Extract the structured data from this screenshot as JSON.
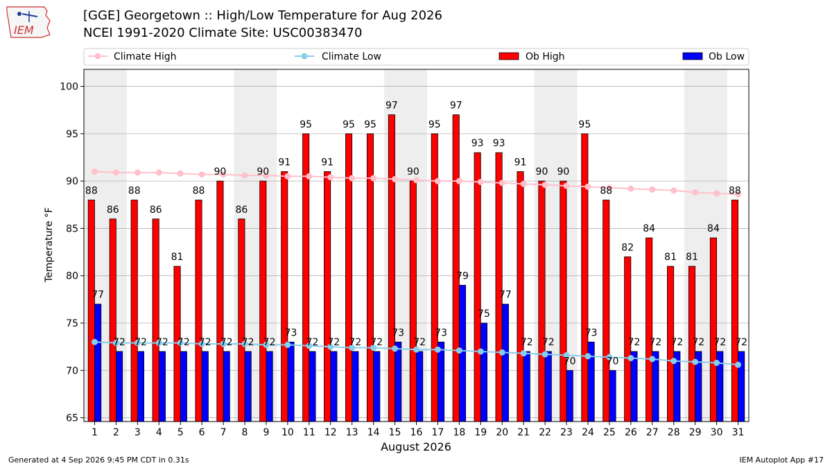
{
  "header": {
    "title_line1": "[GGE] Georgetown :: High/Low Temperature for Aug 2026",
    "title_line2": "NCEI 1991-2020 Climate Site: USC00383470",
    "logo_text": "IEM"
  },
  "footer": {
    "generated": "Generated at 4 Sep 2026 9:45 PM CDT in 0.31s",
    "app": "IEM Autoplot App #17"
  },
  "colors": {
    "ob_high": "#ff0000",
    "ob_low": "#0000ff",
    "climate_high": "#ffc0cb",
    "climate_low": "#87ceeb",
    "weekend_band": "#eeeeee"
  },
  "chart_data": {
    "type": "bar",
    "xlabel": "August 2026",
    "ylabel": "Temperature °F",
    "ylim": [
      64.6,
      101.8
    ],
    "yticks": [
      65,
      70,
      75,
      80,
      85,
      90,
      95,
      100
    ],
    "grid": "horizontal",
    "legend_position": "top",
    "categories": [
      "1",
      "2",
      "3",
      "4",
      "5",
      "6",
      "7",
      "8",
      "9",
      "10",
      "11",
      "12",
      "13",
      "14",
      "15",
      "16",
      "17",
      "18",
      "19",
      "20",
      "21",
      "22",
      "23",
      "24",
      "25",
      "26",
      "27",
      "28",
      "29",
      "30",
      "31"
    ],
    "shaded_days": [
      1,
      2,
      8,
      9,
      15,
      16,
      22,
      23,
      29,
      30
    ],
    "series": [
      {
        "name": "Ob High",
        "kind": "bar",
        "values": [
          88,
          86,
          88,
          86,
          81,
          88,
          90,
          86,
          90,
          91,
          95,
          91,
          95,
          95,
          97,
          90,
          95,
          97,
          93,
          93,
          91,
          90,
          90,
          95,
          88,
          82,
          84,
          81,
          81,
          84,
          88
        ]
      },
      {
        "name": "Ob Low",
        "kind": "bar",
        "values": [
          77,
          72,
          72,
          72,
          72,
          72,
          72,
          72,
          72,
          73,
          72,
          72,
          72,
          72,
          73,
          72,
          73,
          79,
          75,
          77,
          72,
          72,
          70,
          73,
          70,
          72,
          72,
          72,
          72,
          72,
          72
        ]
      },
      {
        "name": "Climate High",
        "kind": "line",
        "values": [
          91.0,
          90.9,
          90.9,
          90.9,
          90.8,
          90.7,
          90.7,
          90.6,
          90.6,
          90.5,
          90.5,
          90.4,
          90.3,
          90.3,
          90.2,
          90.1,
          90.0,
          90.0,
          89.9,
          89.8,
          89.7,
          89.6,
          89.5,
          89.4,
          89.3,
          89.2,
          89.1,
          89.0,
          88.8,
          88.7,
          88.6
        ]
      },
      {
        "name": "Climate Low",
        "kind": "line",
        "values": [
          73.0,
          72.9,
          72.9,
          72.9,
          72.9,
          72.8,
          72.8,
          72.8,
          72.7,
          72.7,
          72.6,
          72.5,
          72.4,
          72.4,
          72.3,
          72.2,
          72.2,
          72.1,
          72.0,
          71.9,
          71.8,
          71.7,
          71.6,
          71.5,
          71.4,
          71.3,
          71.2,
          71.0,
          70.9,
          70.8,
          70.6
        ]
      }
    ]
  }
}
